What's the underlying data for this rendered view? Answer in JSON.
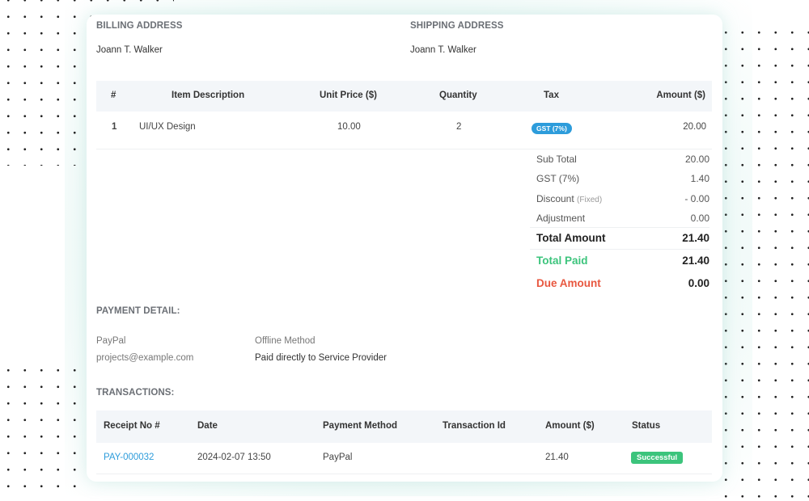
{
  "billing": {
    "label": "BILLING ADDRESS",
    "name": "Joann T. Walker"
  },
  "shipping": {
    "label": "SHIPPING ADDRESS",
    "name": "Joann T. Walker"
  },
  "items": {
    "headers": [
      "#",
      "Item Description",
      "Unit Price ($)",
      "Quantity",
      "Tax",
      "Amount ($)"
    ],
    "rows": [
      {
        "no": "1",
        "description": "UI/UX Design",
        "unit_price": "10.00",
        "quantity": "2",
        "tax": "GST (7%)",
        "amount": "20.00"
      }
    ]
  },
  "summary": {
    "sub_total": {
      "label": "Sub Total",
      "value": "20.00"
    },
    "gst": {
      "label": "GST (7%)",
      "value": "1.40"
    },
    "discount": {
      "label": "Discount",
      "note": "(Fixed)",
      "value": "- 0.00"
    },
    "adjustment": {
      "label": "Adjustment",
      "value": "0.00"
    },
    "total": {
      "label": "Total Amount",
      "value": "21.40"
    },
    "paid": {
      "label": "Total Paid",
      "value": "21.40"
    },
    "due": {
      "label": "Due Amount",
      "value": "0.00"
    }
  },
  "payment": {
    "label": "PAYMENT DETAIL:",
    "method1": "PayPal",
    "email": "projects@example.com",
    "method2": "Offline Method",
    "method2_desc": "Paid directly to Service Provider"
  },
  "transactions": {
    "label": "TRANSACTIONS:",
    "headers": [
      "Receipt No #",
      "Date",
      "Payment Method",
      "Transaction Id",
      "Amount ($)",
      "Status"
    ],
    "rows": [
      {
        "receipt": "PAY-000032",
        "date": "2024-02-07 13:50",
        "method": "PayPal",
        "txn_id": "",
        "amount": "21.40",
        "status": "Successful"
      }
    ]
  },
  "colors": {
    "accent_blue": "#2d9cdb",
    "paid_green": "#3cc47c",
    "due_red": "#e8573f",
    "success_badge": "#3cc47c"
  }
}
